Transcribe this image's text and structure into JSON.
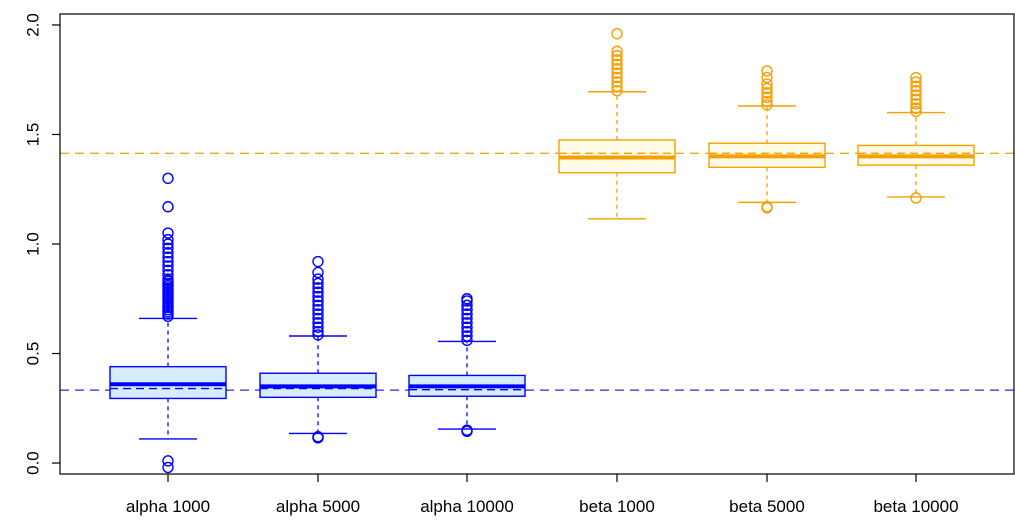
{
  "chart_data": {
    "type": "boxplot",
    "title": "",
    "xlabel": "",
    "ylabel": "",
    "ylim": [
      -0.05,
      2.05
    ],
    "yticks": [
      "0.0",
      "0.5",
      "1.0",
      "1.5",
      "2.0"
    ],
    "categories": [
      "alpha 1000",
      "alpha 5000",
      "alpha 10000",
      "beta 1000",
      "beta 5000",
      "beta 10000"
    ],
    "reference_lines": [
      {
        "value": 0.333,
        "color": "#2b2bd9"
      },
      {
        "value": 1.414,
        "color": "#f5a623"
      }
    ],
    "boxes": [
      {
        "label": "alpha 1000",
        "color": "#0000ff",
        "fill": "#d6ecff",
        "q1": 0.295,
        "median": 0.36,
        "q3": 0.44,
        "mean": 0.34,
        "whisker_low": 0.11,
        "whisker_high": 0.66,
        "outliers": [
          0.01,
          -0.02,
          0.67,
          0.68,
          0.69,
          0.7,
          0.71,
          0.72,
          0.73,
          0.74,
          0.75,
          0.76,
          0.77,
          0.78,
          0.79,
          0.8,
          0.81,
          0.82,
          0.83,
          0.84,
          0.86,
          0.88,
          0.9,
          0.92,
          0.94,
          0.96,
          0.98,
          1.0,
          1.02,
          1.05,
          1.17,
          1.3
        ]
      },
      {
        "label": "alpha 5000",
        "color": "#0000ff",
        "fill": "#d6ecff",
        "q1": 0.3,
        "median": 0.35,
        "q3": 0.41,
        "mean": 0.34,
        "whisker_low": 0.135,
        "whisker_high": 0.58,
        "outliers": [
          0.115,
          0.12,
          0.585,
          0.6,
          0.62,
          0.64,
          0.66,
          0.68,
          0.7,
          0.72,
          0.74,
          0.76,
          0.78,
          0.8,
          0.82,
          0.84,
          0.87,
          0.92
        ]
      },
      {
        "label": "alpha 10000",
        "color": "#0000ff",
        "fill": "#d6ecff",
        "q1": 0.305,
        "median": 0.35,
        "q3": 0.4,
        "mean": 0.335,
        "whisker_low": 0.155,
        "whisker_high": 0.555,
        "outliers": [
          0.145,
          0.15,
          0.56,
          0.58,
          0.6,
          0.62,
          0.64,
          0.66,
          0.68,
          0.7,
          0.72,
          0.74,
          0.75
        ]
      },
      {
        "label": "beta 1000",
        "color": "#f5a000",
        "fill": "#fffbe6",
        "q1": 1.325,
        "median": 1.395,
        "q3": 1.475,
        "mean": 1.414,
        "whisker_low": 1.115,
        "whisker_high": 1.695,
        "outliers": [
          1.7,
          1.72,
          1.74,
          1.76,
          1.78,
          1.8,
          1.82,
          1.84,
          1.86,
          1.88,
          1.96
        ]
      },
      {
        "label": "beta 5000",
        "color": "#f5a000",
        "fill": "#fffbe6",
        "q1": 1.35,
        "median": 1.4,
        "q3": 1.46,
        "mean": 1.414,
        "whisker_low": 1.19,
        "whisker_high": 1.63,
        "outliers": [
          1.165,
          1.17,
          1.635,
          1.65,
          1.67,
          1.69,
          1.71,
          1.73,
          1.76,
          1.79
        ]
      },
      {
        "label": "beta 10000",
        "color": "#f5a000",
        "fill": "#fffbe6",
        "q1": 1.36,
        "median": 1.4,
        "q3": 1.45,
        "mean": 1.414,
        "whisker_low": 1.215,
        "whisker_high": 1.6,
        "outliers": [
          1.21,
          1.605,
          1.62,
          1.64,
          1.66,
          1.68,
          1.7,
          1.72,
          1.74,
          1.76
        ]
      }
    ]
  }
}
